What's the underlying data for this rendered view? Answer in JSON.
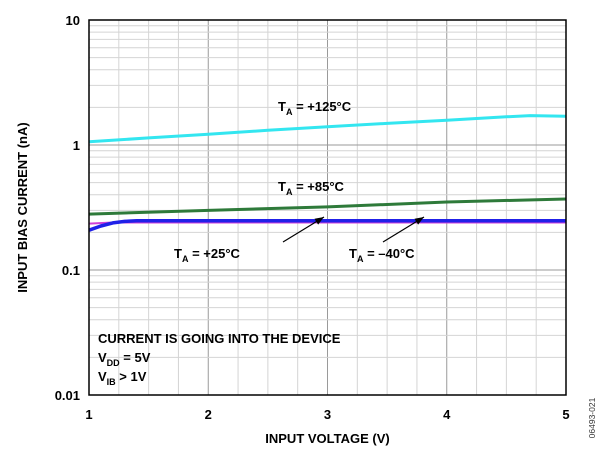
{
  "chart_data": {
    "type": "line",
    "xlabel": "INPUT VOLTAGE (V)",
    "ylabel": "INPUT BIAS CURRENT (nA)",
    "xlim": [
      1,
      5
    ],
    "ylim": [
      0.01,
      10
    ],
    "yscale": "log",
    "x_ticks": [
      "1",
      "2",
      "3",
      "4",
      "5"
    ],
    "y_ticks": [
      "0.01",
      "0.1",
      "1",
      "10"
    ],
    "grid": true,
    "series": [
      {
        "color": "#33e6f0",
        "x": [
          1.0,
          1.5,
          2.0,
          2.5,
          3.0,
          3.5,
          4.0,
          4.5,
          4.7,
          5.0
        ],
        "y": [
          1.06,
          1.14,
          1.22,
          1.31,
          1.4,
          1.49,
          1.58,
          1.68,
          1.72,
          1.7
        ]
      },
      {
        "color": "#2e7a3a",
        "x": [
          1.0,
          2.0,
          3.0,
          4.0,
          5.0
        ],
        "y": [
          0.28,
          0.3,
          0.32,
          0.35,
          0.37
        ]
      },
      {
        "color": "#2020e8",
        "x": [
          1.0,
          1.1,
          1.2,
          1.3,
          1.4,
          1.5,
          2.0,
          3.0,
          4.0,
          5.0
        ],
        "y": [
          0.208,
          0.225,
          0.238,
          0.245,
          0.248,
          0.248,
          0.248,
          0.248,
          0.248,
          0.248
        ]
      },
      {
        "color": "#d040d8",
        "x": [
          1.0,
          1.2,
          2.0,
          3.0,
          4.0,
          5.0
        ],
        "y": [
          0.235,
          0.24,
          0.24,
          0.24,
          0.24,
          0.24
        ]
      }
    ],
    "annotations": [
      {
        "main": "T",
        "sub": "A",
        "rest": " = +125°C"
      },
      {
        "main": "T",
        "sub": "A",
        "rest": " = +85°C"
      },
      {
        "main": "T",
        "sub": "A",
        "rest": " = +25°C"
      },
      {
        "main": "T",
        "sub": "A",
        "rest": " = –40°C"
      }
    ],
    "notes": [
      {
        "main": "CURRENT IS GOING INTO THE DEVICE",
        "sub": "",
        "rest": ""
      },
      {
        "main": "V",
        "sub": "DD",
        "rest": " = 5V"
      },
      {
        "main": "V",
        "sub": "IB",
        "rest": " > 1V"
      }
    ],
    "figure_id": "06493-021"
  }
}
